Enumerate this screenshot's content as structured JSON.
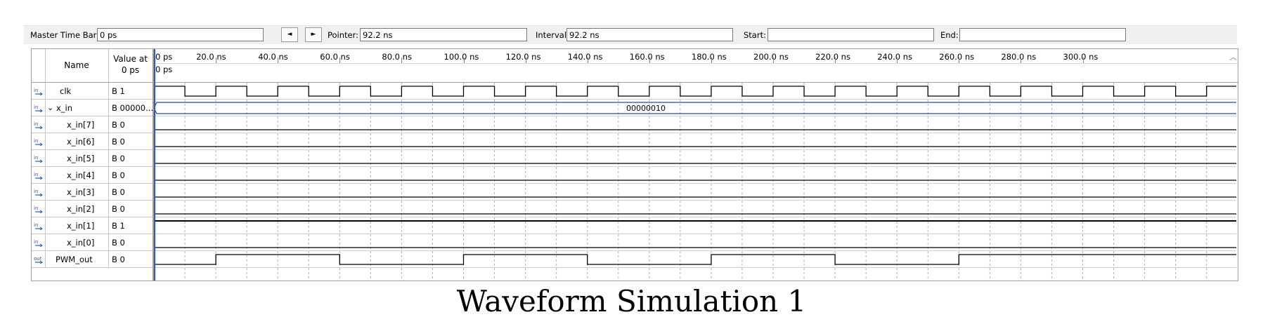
{
  "toolbar": {
    "master_label": "Master Time Bar:",
    "master_value": "0 ps",
    "prev_icon": "triangle-left-icon",
    "next_icon": "triangle-right-icon",
    "pointer_label": "Pointer:",
    "pointer_value": "92.2 ns",
    "interval_label": "Interval:",
    "interval_value": "92.2 ns",
    "start_label": "Start:",
    "start_value": "",
    "end_label": "End:",
    "end_value": ""
  },
  "header": {
    "name_col": "Name",
    "value_col_line1": "Value at",
    "value_col_line2": "0 ps",
    "cursor_label": "0 ps"
  },
  "timeline": {
    "ticks": [
      "0 ps",
      "20.0 ns",
      "40.0 ns",
      "60.0 ns",
      "80.0 ns",
      "100.0 ns",
      "120.0 ns",
      "140.0 ns",
      "160.0 ns",
      "180.0 ns",
      "200.0 ns",
      "220.0 ns",
      "240.0 ns",
      "260.0 ns",
      "280.0 ns",
      "300.0 ns"
    ]
  },
  "signals": [
    {
      "name": "clk",
      "value": "B 1",
      "icon": "in",
      "indent": false,
      "bus": false
    },
    {
      "name": "x_in",
      "value": "B 00000...",
      "icon": "in-bus",
      "indent": false,
      "bus": true,
      "bus_value": "00000010"
    },
    {
      "name": "x_in[7]",
      "value": "B 0",
      "icon": "in",
      "indent": true,
      "bus": false
    },
    {
      "name": "x_in[6]",
      "value": "B 0",
      "icon": "in",
      "indent": true,
      "bus": false
    },
    {
      "name": "x_in[5]",
      "value": "B 0",
      "icon": "in",
      "indent": true,
      "bus": false
    },
    {
      "name": "x_in[4]",
      "value": "B 0",
      "icon": "in",
      "indent": true,
      "bus": false
    },
    {
      "name": "x_in[3]",
      "value": "B 0",
      "icon": "in",
      "indent": true,
      "bus": false
    },
    {
      "name": "x_in[2]",
      "value": "B 0",
      "icon": "in",
      "indent": true,
      "bus": false
    },
    {
      "name": "x_in[1]",
      "value": "B 1",
      "icon": "in",
      "indent": true,
      "bus": false
    },
    {
      "name": "x_in[0]",
      "value": "B 0",
      "icon": "in",
      "indent": true,
      "bus": false
    },
    {
      "name": "PWM_out",
      "value": "B 0",
      "icon": "out",
      "indent": false,
      "bus": false
    }
  ],
  "waves": {
    "clk_period_ns": 20,
    "clk_initial": 1,
    "pwm_transitions_ns": [
      [
        0,
        0
      ],
      [
        20,
        1
      ],
      [
        60,
        0
      ],
      [
        100,
        1
      ],
      [
        140,
        0
      ],
      [
        180,
        1
      ],
      [
        220,
        0
      ],
      [
        260,
        1
      ],
      [
        300,
        1
      ]
    ],
    "bit_levels": [
      0,
      0,
      0,
      0,
      0,
      0,
      1,
      0
    ]
  },
  "caption": "Waveform Simulation 1",
  "colors": {
    "panel_bg": "#f0f0f0",
    "grid": "#a0a0a0",
    "cursor": "#3355cc",
    "bus": "#3344aa",
    "icon": "#1a5fb4"
  }
}
